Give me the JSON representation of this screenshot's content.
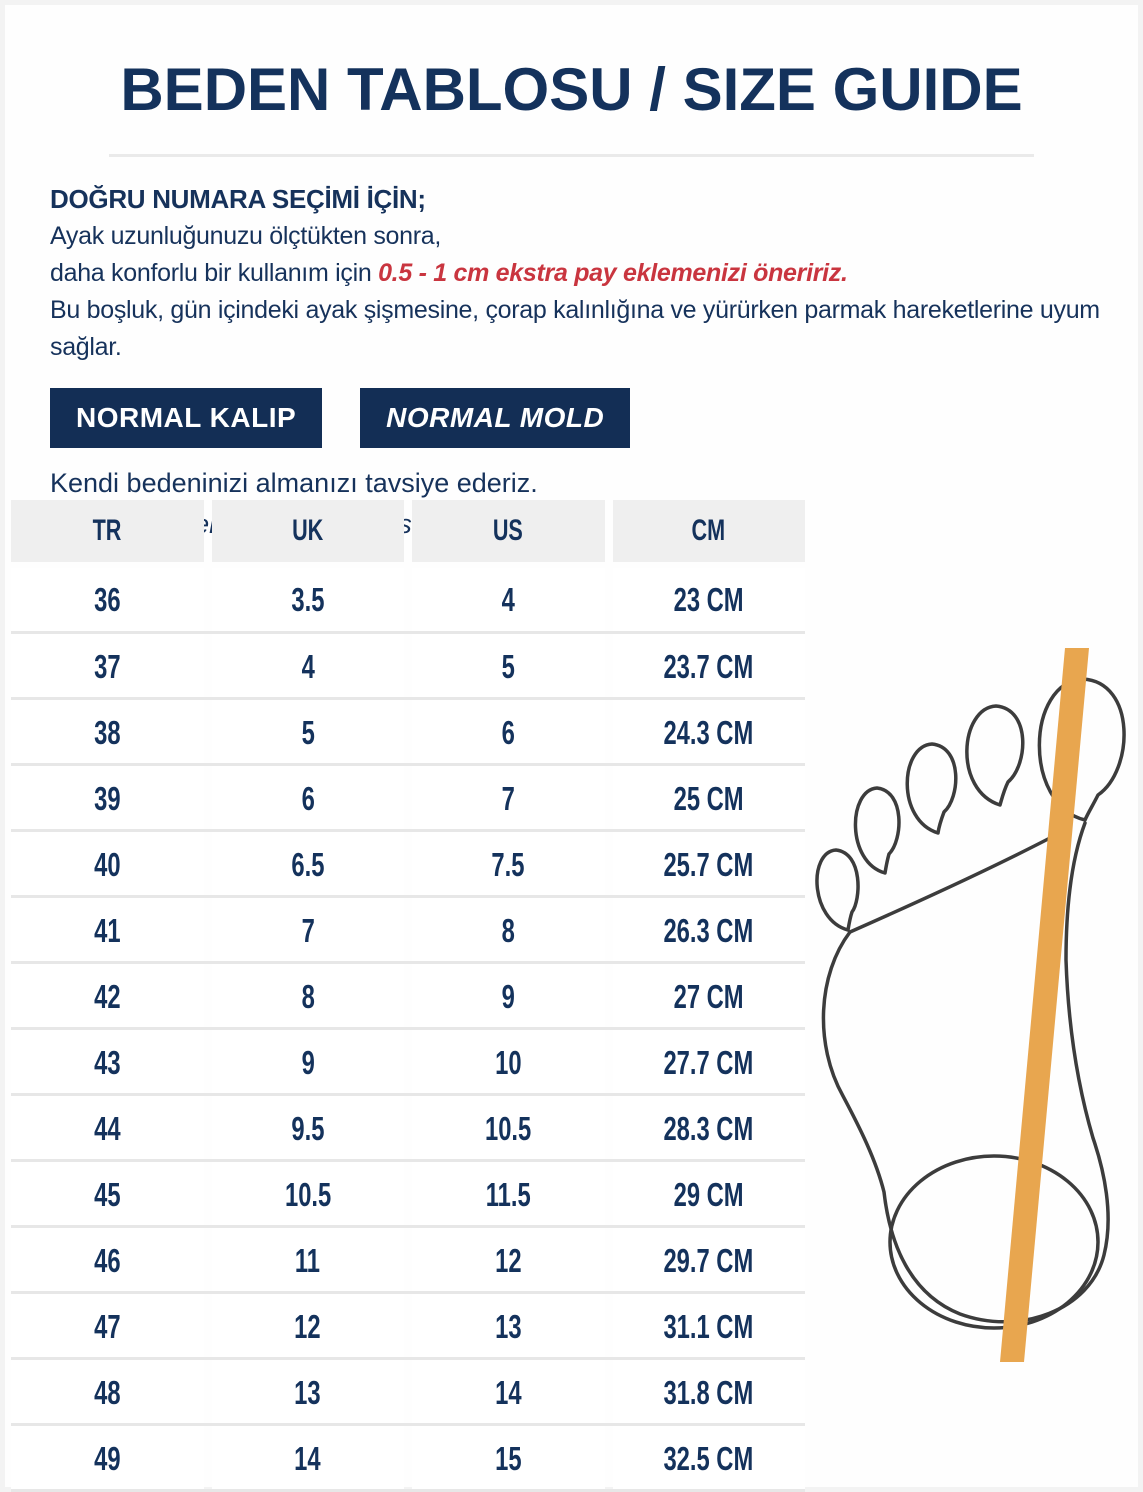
{
  "page": {
    "title": "BEDEN TABLOSU / SIZE GUIDE"
  },
  "intro": {
    "heading": "DOĞRU NUMARA SEÇİMİ İÇİN;",
    "line1": "Ayak uzunluğunuzu ölçtükten sonra,",
    "line2_prefix": "daha konforlu bir kullanım için ",
    "line2_highlight": "0.5 - 1 cm ekstra pay eklemenizi öneririz.",
    "line3": "Bu boşluk, gün içindeki ayak şişmesine, çorap kalınlığına ve yürürken parmak hareketlerine uyum sağlar."
  },
  "badges": {
    "kalip_tr": "NORMAL KALIP",
    "mold_en": "NORMAL MOLD"
  },
  "advice": {
    "tr": "Kendi bedeninizi almanızı tavsiye ederiz.",
    "en": "You can order with your own shoe size."
  },
  "size_table": {
    "headers": [
      "TR",
      "UK",
      "US",
      "CM"
    ],
    "rows": [
      [
        "36",
        "3.5",
        "4",
        "23 CM"
      ],
      [
        "37",
        "4",
        "5",
        "23.7 CM"
      ],
      [
        "38",
        "5",
        "6",
        "24.3 CM"
      ],
      [
        "39",
        "6",
        "7",
        "25 CM"
      ],
      [
        "40",
        "6.5",
        "7.5",
        "25.7 CM"
      ],
      [
        "41",
        "7",
        "8",
        "26.3 CM"
      ],
      [
        "42",
        "8",
        "9",
        "27 CM"
      ],
      [
        "43",
        "9",
        "10",
        "27.7 CM"
      ],
      [
        "44",
        "9.5",
        "10.5",
        "28.3 CM"
      ],
      [
        "45",
        "10.5",
        "11.5",
        "29 CM"
      ],
      [
        "46",
        "11",
        "12",
        "29.7 CM"
      ],
      [
        "47",
        "12",
        "13",
        "31.1 CM"
      ],
      [
        "48",
        "13",
        "14",
        "31.8 CM"
      ],
      [
        "49",
        "14",
        "15",
        "32.5 CM"
      ]
    ]
  },
  "illustration": {
    "name": "foot-outline-with-measuring-band",
    "band_color": "#E8A64F",
    "outline_color": "#3C3C3C"
  },
  "colors": {
    "navy": "#14325C",
    "red": "#C9353F",
    "orange": "#E8A64F",
    "header_bg": "#EFEFEF",
    "row_border": "#E7E7E7"
  }
}
